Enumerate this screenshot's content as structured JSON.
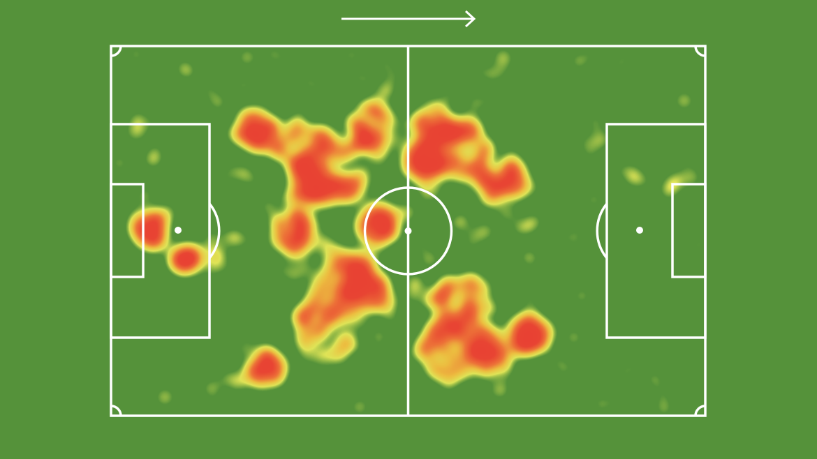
{
  "colors": {
    "pitch": "#55923a",
    "lines": "#ffffff",
    "heat_low": "#f2f25a",
    "heat_mid": "#f2a63c",
    "heat_high": "#e84133"
  },
  "attack_direction": "right",
  "icons": {
    "direction": "arrow-right-icon"
  }
}
